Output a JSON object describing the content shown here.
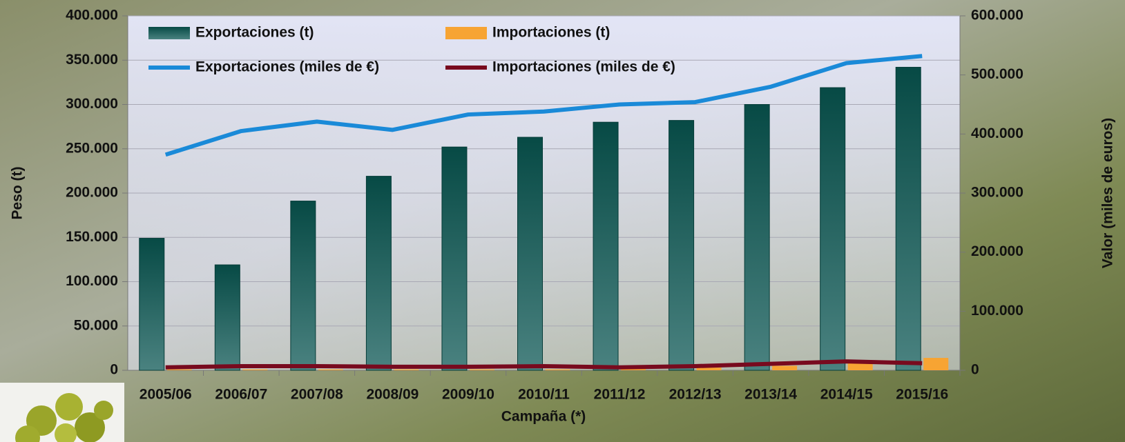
{
  "chart_data": {
    "type": "bar",
    "xlabel": "Campaña (*)",
    "ylabel": "Peso (t)",
    "y2label": "Valor (miles de euros)",
    "categories": [
      "2005/06",
      "2006/07",
      "2007/08",
      "2008/09",
      "2009/10",
      "2010/11",
      "2011/12",
      "2012/13",
      "2013/14",
      "2014/15",
      "2015/16"
    ],
    "series": [
      {
        "name": "Exportaciones (t)",
        "type": "bar",
        "color": "#0b4d48",
        "values": [
          149000,
          119000,
          191000,
          219000,
          252000,
          263000,
          280000,
          282000,
          300000,
          319000,
          342000
        ]
      },
      {
        "name": "Importaciones (t)",
        "type": "bar",
        "color": "#f7a433",
        "values": [
          1000,
          1000,
          1000,
          1000,
          1000,
          1000,
          1500,
          3000,
          5000,
          9000,
          14000
        ]
      },
      {
        "name": "Exportaciones (miles de €)",
        "type": "line",
        "axis": "y2",
        "color": "#1a8ad8",
        "values": [
          365000,
          405000,
          421000,
          407000,
          433000,
          438000,
          450000,
          454000,
          480000,
          520000,
          532000
        ]
      },
      {
        "name": "Importaciones (miles de €)",
        "type": "line",
        "axis": "y2",
        "color": "#780a1e",
        "values": [
          5000,
          7000,
          7000,
          6000,
          6000,
          7000,
          5000,
          7000,
          11000,
          15000,
          12000
        ]
      }
    ],
    "ylim": [
      0,
      400000
    ],
    "yticks": [
      0,
      {
        "value": 50000,
        "label": "50.000"
      },
      {
        "value": 100000,
        "label": "100.000"
      },
      {
        "value": 150000,
        "label": "150.000"
      },
      {
        "value": 200000,
        "label": "200.000"
      },
      {
        "value": 250000,
        "label": "250.000"
      },
      {
        "value": 300000,
        "label": "300.000"
      },
      {
        "value": 350000,
        "label": "350.000"
      },
      {
        "value": 400000,
        "label": "400.000"
      }
    ],
    "y2lim": [
      0,
      600000
    ],
    "y2ticks": [
      0,
      {
        "value": 100000,
        "label": "100.000"
      },
      {
        "value": 200000,
        "label": "200.000"
      },
      {
        "value": 300000,
        "label": "300.000"
      },
      {
        "value": 400000,
        "label": "400.000"
      },
      {
        "value": 500000,
        "label": "500.000"
      },
      {
        "value": 600000,
        "label": "600.000"
      }
    ],
    "grid": true,
    "legend": "top-left"
  }
}
